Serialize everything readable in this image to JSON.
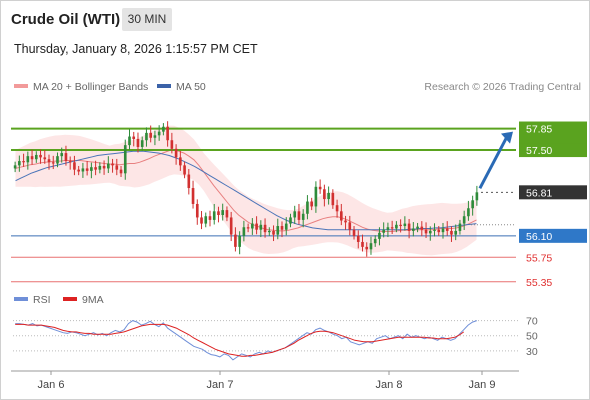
{
  "header": {
    "title": "Crude Oil (WTI)",
    "timeframe": "30 MIN",
    "datetime": "Thursday, January 8, 2026 1:15:57 PM CET"
  },
  "legend": {
    "ma20_label": "MA 20 + Bollinger Bands",
    "ma50_label": "MA 50",
    "rsi_label": "RSI",
    "ma9_label": "9MA"
  },
  "research": "Research © 2026 Trading Central",
  "colors": {
    "resistance": "#5aa31f",
    "pivot": "#3b6fb5",
    "support": "#e87070",
    "last_price_bg": "#333333",
    "arrow": "#2a6ab5",
    "bollinger_fill": "#fde0e0",
    "ma20": "#e88080",
    "ma50": "#4a74b8",
    "rsi": "#6f8fd8",
    "rsi_ma": "#dd2222",
    "candle_up": "#2e8b3a",
    "candle_down": "#d23030"
  },
  "chart_data": [
    {
      "type": "candlestick",
      "x_labels": [
        "Jan 6",
        "Jan 7",
        "Jan 8",
        "Jan 9"
      ],
      "ylim": [
        55.2,
        58.3
      ],
      "levels": [
        {
          "kind": "resistance",
          "value": 57.85,
          "label": "57.85"
        },
        {
          "kind": "resistance",
          "value": 57.5,
          "label": "57.50"
        },
        {
          "kind": "last",
          "value": 56.81,
          "label": "56.81"
        },
        {
          "kind": "pivot",
          "value": 56.1,
          "label": "56.10"
        },
        {
          "kind": "support",
          "value": 55.75,
          "label": "55.75"
        },
        {
          "kind": "support",
          "value": 55.35,
          "label": "55.35"
        }
      ],
      "close": [
        57.25,
        57.32,
        57.3,
        57.4,
        57.35,
        57.42,
        57.38,
        57.35,
        57.3,
        57.28,
        57.4,
        57.45,
        57.32,
        57.3,
        57.18,
        57.15,
        57.2,
        57.16,
        57.22,
        57.18,
        57.24,
        57.2,
        57.28,
        57.25,
        57.18,
        57.12,
        57.58,
        57.72,
        57.68,
        57.55,
        57.66,
        57.78,
        57.7,
        57.74,
        57.8,
        57.88,
        57.66,
        57.52,
        57.38,
        57.25,
        57.1,
        56.88,
        56.62,
        56.4,
        56.3,
        56.42,
        56.36,
        56.5,
        56.44,
        56.52,
        56.4,
        56.12,
        55.92,
        56.1,
        56.24,
        56.22,
        56.3,
        56.2,
        56.28,
        56.16,
        56.18,
        56.12,
        56.26,
        56.2,
        56.3,
        56.4,
        56.5,
        56.36,
        56.46,
        56.66,
        56.58,
        56.9,
        56.86,
        56.7,
        56.8,
        56.6,
        56.5,
        56.35,
        56.32,
        56.2,
        56.1,
        56.0,
        55.92,
        55.88,
        55.98,
        56.05,
        56.15,
        56.2,
        56.24,
        56.22,
        56.28,
        56.26,
        56.3,
        56.18,
        56.22,
        56.25,
        56.2,
        56.14,
        56.18,
        56.2,
        56.16,
        56.22,
        56.18,
        56.12,
        56.18,
        56.3,
        56.42,
        56.55,
        56.68,
        56.81
      ],
      "ma20": [
        57.2,
        57.22,
        57.24,
        57.26,
        57.27,
        57.29,
        57.3,
        57.31,
        57.32,
        57.32,
        57.33,
        57.33,
        57.33,
        57.33,
        57.32,
        57.31,
        57.3,
        57.29,
        57.28,
        57.27,
        57.27,
        57.26,
        57.27,
        57.28,
        57.28,
        57.3,
        57.33,
        57.36,
        57.4,
        57.43,
        57.46,
        57.49,
        57.5,
        57.48,
        57.45,
        57.4,
        57.34,
        57.25,
        57.14,
        57.03,
        56.92,
        56.82,
        56.72,
        56.62,
        56.52,
        56.44,
        56.38,
        56.32,
        56.28,
        56.25,
        56.22,
        56.2,
        56.19,
        56.18,
        56.18,
        56.19,
        56.21,
        56.23,
        56.26,
        56.29,
        56.32,
        56.35,
        56.38,
        56.4,
        56.41,
        56.41,
        56.39,
        56.36,
        56.32,
        56.28,
        56.24,
        56.21,
        56.19,
        56.18,
        56.17,
        56.17,
        56.17,
        56.18,
        56.19,
        56.19,
        56.2,
        56.2,
        56.2,
        56.2,
        56.2,
        56.21,
        56.22,
        56.22,
        56.22,
        56.23,
        56.25,
        56.28,
        56.32,
        56.36
      ],
      "ma50": [
        57.0,
        57.04,
        57.08,
        57.12,
        57.15,
        57.18,
        57.21,
        57.23,
        57.25,
        57.27,
        57.29,
        57.31,
        57.33,
        57.35,
        57.37,
        57.39,
        57.41,
        57.42,
        57.43,
        57.44,
        57.45,
        57.46,
        57.47,
        57.48,
        57.48,
        57.48,
        57.47,
        57.46,
        57.45,
        57.43,
        57.41,
        57.38,
        57.35,
        57.31,
        57.27,
        57.23,
        57.18,
        57.13,
        57.08,
        57.03,
        56.98,
        56.93,
        56.88,
        56.83,
        56.78,
        56.73,
        56.68,
        56.63,
        56.58,
        56.53,
        56.48,
        56.43,
        56.39,
        56.35,
        56.32,
        56.29,
        56.27,
        56.25,
        56.23,
        56.22,
        56.21,
        56.2,
        56.2,
        56.2,
        56.2,
        56.2,
        56.2,
        56.2,
        56.2,
        56.2,
        56.2,
        56.2,
        56.2,
        56.2,
        56.2,
        56.2,
        56.2,
        56.21,
        56.21,
        56.22,
        56.22,
        56.22,
        56.23,
        56.23,
        56.24,
        56.25,
        56.26,
        56.27,
        56.28,
        56.29,
        56.3
      ]
    },
    {
      "type": "line",
      "name": "RSI",
      "ylim": [
        10,
        80
      ],
      "y_ticks": [
        70,
        50,
        30
      ],
      "rsi": [
        66,
        66,
        65,
        64,
        66,
        63,
        64,
        62,
        60,
        58,
        56,
        54,
        53,
        55,
        54,
        52,
        50,
        52,
        54,
        51,
        53,
        50,
        54,
        57,
        55,
        58,
        66,
        70,
        68,
        64,
        66,
        69,
        65,
        62,
        67,
        60,
        56,
        52,
        48,
        44,
        40,
        36,
        34,
        32,
        28,
        25,
        24,
        22,
        26,
        24,
        18,
        22,
        26,
        24,
        22,
        26,
        28,
        26,
        30,
        28,
        30,
        32,
        34,
        38,
        42,
        46,
        50,
        54,
        52,
        58,
        60,
        57,
        55,
        52,
        50,
        46,
        48,
        42,
        40,
        38,
        40,
        42,
        40,
        46,
        48,
        50,
        46,
        48,
        50,
        46,
        52,
        48,
        50,
        48,
        46,
        48,
        46,
        44,
        48,
        46,
        44,
        46,
        52,
        58,
        64,
        68,
        70
      ],
      "rsi_ma": [
        65,
        65,
        65,
        64,
        64,
        64,
        64,
        63,
        62,
        61,
        59,
        57,
        56,
        55,
        55,
        54,
        53,
        53,
        52,
        52,
        52,
        52,
        52,
        53,
        54,
        55,
        57,
        59,
        61,
        63,
        64,
        65,
        65,
        65,
        65,
        64,
        62,
        60,
        57,
        54,
        51,
        47,
        44,
        41,
        38,
        35,
        32,
        30,
        28,
        26,
        25,
        24,
        23,
        23,
        24,
        24,
        25,
        26,
        27,
        28,
        30,
        32,
        34,
        37,
        40,
        44,
        47,
        50,
        53,
        55,
        56,
        56,
        55,
        54,
        52,
        50,
        48,
        46,
        44,
        43,
        42,
        42,
        42,
        43,
        44,
        45,
        46,
        47,
        48,
        48,
        48,
        48,
        48,
        48,
        48,
        47,
        47,
        46,
        46,
        46,
        47,
        48,
        51,
        55
      ]
    }
  ]
}
